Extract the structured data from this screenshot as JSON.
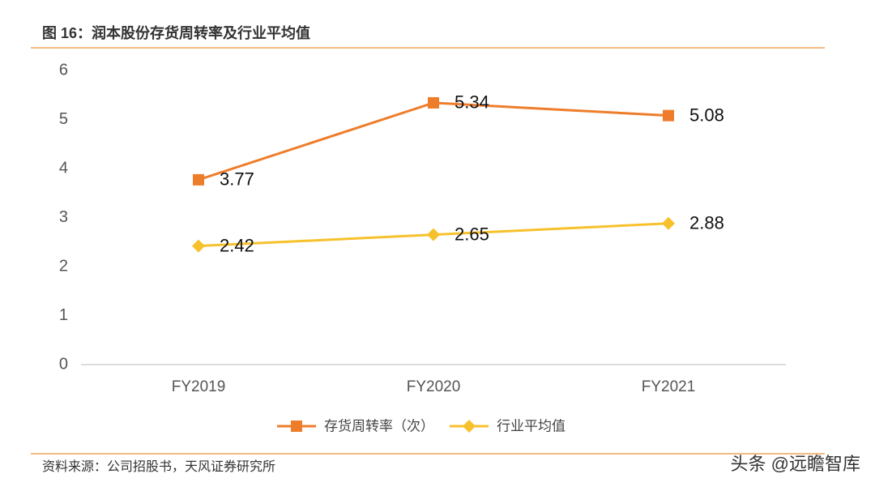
{
  "chart_data": {
    "type": "line",
    "title": "图 16：润本股份存货周转率及行业平均值",
    "source": "资料来源：公司招股书，天风证券研究所",
    "watermark": "头条 @远瞻智库",
    "categories": [
      "FY2019",
      "FY2020",
      "FY2021"
    ],
    "series": [
      {
        "name": "存货周转率（次）",
        "color": "#ee7d2b",
        "marker": "square",
        "values": [
          3.77,
          5.34,
          5.08
        ]
      },
      {
        "name": "行业平均值",
        "color": "#f7c12c",
        "marker": "diamond",
        "values": [
          2.42,
          2.65,
          2.88
        ]
      }
    ],
    "ylim": [
      0,
      6
    ],
    "yticks": [
      0,
      1,
      2,
      3,
      4,
      5,
      6
    ],
    "grid": false,
    "legend": "bottom"
  }
}
